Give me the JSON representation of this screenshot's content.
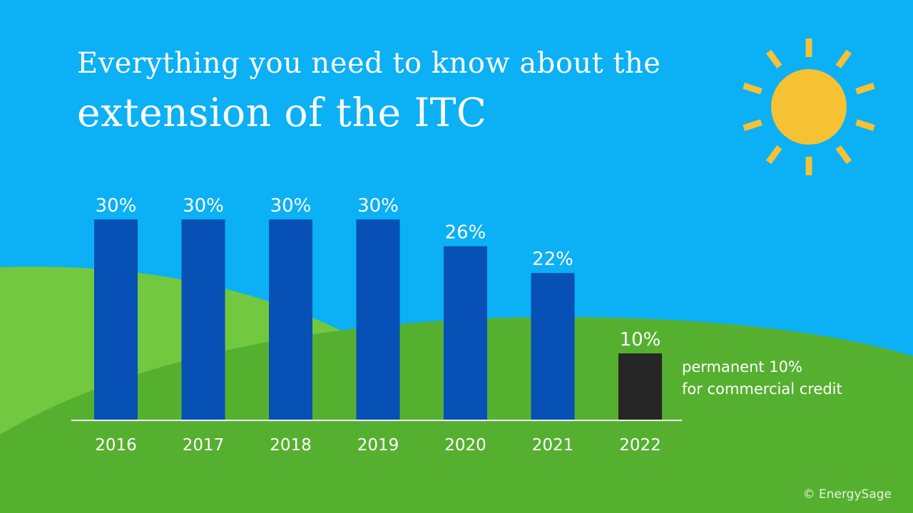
{
  "title": {
    "line1": "Everything you need to know about the",
    "line2": "extension of the ITC"
  },
  "note": {
    "line1": "permanent 10%",
    "line2": "for commercial credit"
  },
  "copyright": "© EnergySage",
  "colors": {
    "sky": "#0bb0f5",
    "hill_light": "#72c83e",
    "hill_dark": "#56b030",
    "bar": "#0650b6",
    "bar_highlight": "#262626",
    "sun": "#f6c133",
    "text": "#ffffff"
  },
  "icons": [
    "sun-icon"
  ],
  "chart_data": {
    "type": "bar",
    "categories": [
      "2016",
      "2017",
      "2018",
      "2019",
      "2020",
      "2021",
      "2022"
    ],
    "values": [
      30,
      30,
      30,
      30,
      26,
      22,
      10
    ],
    "data_labels": [
      "30%",
      "30%",
      "30%",
      "30%",
      "26%",
      "22%",
      "10%"
    ],
    "highlight_category": "2022",
    "ylim": [
      0,
      30
    ],
    "grid": false,
    "legend": "none"
  }
}
